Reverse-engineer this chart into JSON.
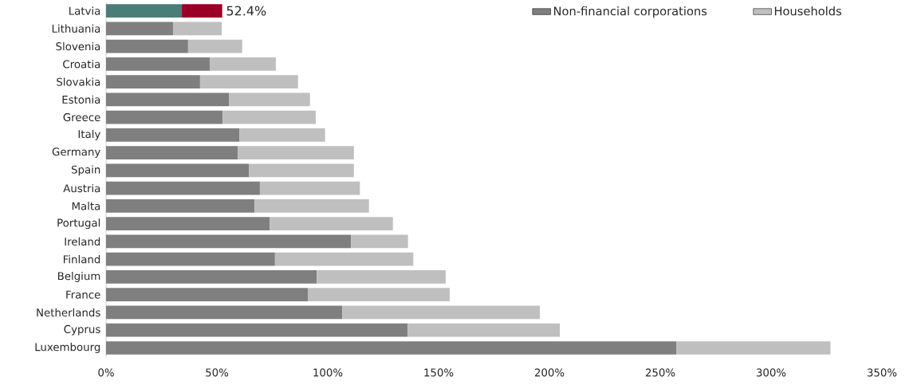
{
  "chart_data": {
    "type": "bar",
    "orientation": "horizontal",
    "stacked": true,
    "categories": [
      "Latvia",
      "Lithuania",
      "Slovenia",
      "Croatia",
      "Slovakia",
      "Estonia",
      "Greece",
      "Italy",
      "Germany",
      "Spain",
      "Austria",
      "Malta",
      "Portugal",
      "Ireland",
      "Finland",
      "Belgium",
      "France",
      "Netherlands",
      "Cyprus",
      "Luxembourg"
    ],
    "series": [
      {
        "name": "Non-financial corporations",
        "color": "#7f7f7f",
        "colors": [
          "#4a7c78",
          "#7f7f7f",
          "#7f7f7f",
          "#7f7f7f",
          "#7f7f7f",
          "#7f7f7f",
          "#7f7f7f",
          "#7f7f7f",
          "#7f7f7f",
          "#7f7f7f",
          "#7f7f7f",
          "#7f7f7f",
          "#7f7f7f",
          "#7f7f7f",
          "#7f7f7f",
          "#7f7f7f",
          "#7f7f7f",
          "#7f7f7f",
          "#7f7f7f",
          "#7f7f7f"
        ],
        "values": [
          34.2,
          30.2,
          37.0,
          46.8,
          42.4,
          55.4,
          52.6,
          60.2,
          59.4,
          64.4,
          69.4,
          67.0,
          73.8,
          110.5,
          76.2,
          95.1,
          91.0,
          106.6,
          136.1,
          257.2
        ]
      },
      {
        "name": "Households",
        "color": "#bfbfbf",
        "colors": [
          "#990026",
          "#bfbfbf",
          "#bfbfbf",
          "#bfbfbf",
          "#bfbfbf",
          "#bfbfbf",
          "#bfbfbf",
          "#bfbfbf",
          "#bfbfbf",
          "#bfbfbf",
          "#bfbfbf",
          "#bfbfbf",
          "#bfbfbf",
          "#bfbfbf",
          "#bfbfbf",
          "#bfbfbf",
          "#bfbfbf",
          "#bfbfbf",
          "#bfbfbf",
          "#bfbfbf"
        ],
        "values": [
          18.2,
          22.0,
          24.4,
          29.8,
          44.2,
          36.6,
          42.0,
          38.6,
          52.4,
          47.4,
          45.1,
          51.6,
          55.6,
          25.7,
          62.4,
          58.1,
          64.0,
          89.1,
          68.6,
          69.6
        ]
      }
    ],
    "totals": [
      "52.4%",
      null,
      null,
      null,
      null,
      null,
      null,
      null,
      null,
      null,
      null,
      null,
      null,
      null,
      null,
      null,
      null,
      null,
      null,
      null
    ],
    "xlim": [
      0,
      350
    ],
    "xticks": [
      {
        "value": 0,
        "label": "0%"
      },
      {
        "value": 50,
        "label": "50%"
      },
      {
        "value": 100,
        "label": "100%"
      },
      {
        "value": 150,
        "label": "150%"
      },
      {
        "value": 200,
        "label": "200%"
      },
      {
        "value": 250,
        "label": "250%"
      },
      {
        "value": 300,
        "label": "300%"
      },
      {
        "value": 350,
        "label": "350%"
      }
    ],
    "legend": "top right",
    "grid": false
  }
}
